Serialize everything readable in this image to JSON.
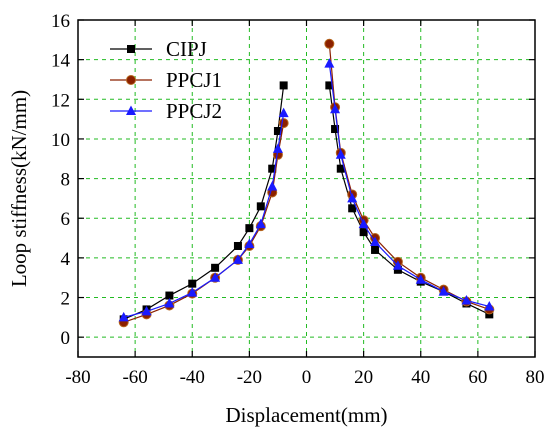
{
  "chart_data": {
    "type": "line",
    "xlabel": "Displacement(mm)",
    "ylabel": "Loop stiffness(kN/mm)",
    "xlim": [
      -80,
      80
    ],
    "ylim": [
      -1,
      16
    ],
    "x_ticks": [
      -80,
      -60,
      -40,
      -20,
      0,
      20,
      40,
      60,
      80
    ],
    "y_ticks": [
      0,
      2,
      4,
      6,
      8,
      10,
      12,
      14,
      16
    ],
    "grid": true,
    "legend_position": "top-left",
    "series": [
      {
        "name": "CIPJ",
        "color": "#000000",
        "marker": "square",
        "x": [
          -64,
          -56,
          -48,
          -40,
          -32,
          -24,
          -20,
          -16,
          -12,
          -10,
          -8,
          null,
          8,
          10,
          12,
          16,
          20,
          24,
          32,
          40,
          48,
          56,
          64
        ],
        "y": [
          0.9,
          1.4,
          2.1,
          2.7,
          3.5,
          4.6,
          5.5,
          6.6,
          8.5,
          10.4,
          12.7,
          null,
          12.7,
          10.5,
          8.5,
          6.5,
          5.3,
          4.4,
          3.4,
          2.8,
          2.3,
          1.7,
          1.15
        ]
      },
      {
        "name": "PPCJ1",
        "color": "#8b2000",
        "marker": "circle",
        "x": [
          -64,
          -56,
          -48,
          -40,
          -32,
          -24,
          -20,
          -16,
          -12,
          -10,
          -8,
          null,
          8,
          10,
          12,
          16,
          20,
          24,
          32,
          40,
          48,
          56,
          64
        ],
        "y": [
          0.75,
          1.15,
          1.6,
          2.2,
          3.0,
          3.9,
          4.6,
          5.6,
          7.3,
          9.2,
          10.8,
          null,
          14.8,
          11.6,
          9.3,
          7.2,
          5.9,
          5.0,
          3.8,
          3.0,
          2.4,
          1.8,
          1.4
        ]
      },
      {
        "name": "PPCJ2",
        "color": "#1a1aff",
        "marker": "triangle",
        "x": [
          -64,
          -56,
          -48,
          -40,
          -32,
          -24,
          -20,
          -16,
          -12,
          -10,
          -8,
          null,
          8,
          10,
          12,
          16,
          20,
          24,
          32,
          40,
          48,
          56,
          64
        ],
        "y": [
          1.0,
          1.3,
          1.7,
          2.25,
          3.0,
          3.9,
          4.7,
          5.7,
          7.6,
          9.5,
          11.3,
          null,
          13.8,
          11.5,
          9.2,
          7.0,
          5.7,
          4.8,
          3.6,
          2.9,
          2.3,
          1.85,
          1.55
        ]
      }
    ]
  }
}
